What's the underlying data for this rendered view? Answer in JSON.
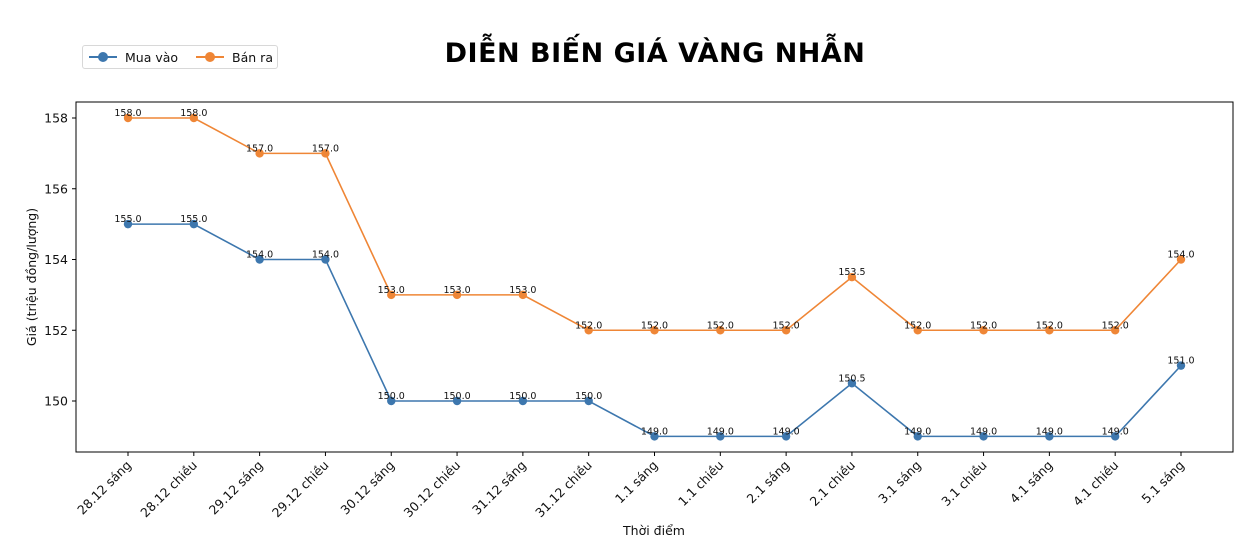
{
  "chart_data": {
    "type": "line",
    "title": "DIỄN BIẾN GIÁ VÀNG NHẪN",
    "xlabel": "Thời điểm",
    "ylabel": "Giá (triệu đồng/lượng)",
    "ylim": [
      148.6,
      158.45
    ],
    "yticks": [
      150,
      152,
      154,
      156,
      158
    ],
    "grid": false,
    "legend_position": "upper left (outside, above plot)",
    "categories": [
      "28.12 sáng",
      "28.12 chiều",
      "29.12 sáng",
      "29.12 chiều",
      "30.12 sáng",
      "30.12 chiều",
      "31.12 sáng",
      "31.12 chiều",
      "1.1 sáng",
      "1.1 chiều",
      "2.1 sáng",
      "2.1 chiều",
      "3.1 sáng",
      "3.1 chiều",
      "4.1 sáng",
      "4.1 chiều",
      "5.1 sáng"
    ],
    "series": [
      {
        "name": "Mua vào",
        "color": "#3d77ae",
        "values": [
          155.0,
          155.0,
          154.0,
          154.0,
          150.0,
          150.0,
          150.0,
          150.0,
          149.0,
          149.0,
          149.0,
          150.5,
          149.0,
          149.0,
          149.0,
          149.0,
          151.0
        ]
      },
      {
        "name": "Bán ra",
        "color": "#ef8636",
        "values": [
          158.0,
          158.0,
          157.0,
          157.0,
          153.0,
          153.0,
          153.0,
          152.0,
          152.0,
          152.0,
          152.0,
          153.5,
          152.0,
          152.0,
          152.0,
          152.0,
          154.0
        ]
      }
    ],
    "data_labels": true,
    "data_label_format": "0.0"
  },
  "legend": {
    "items": [
      {
        "label": "Mua vào",
        "color": "#3d77ae"
      },
      {
        "label": "Bán ra",
        "color": "#ef8636"
      }
    ]
  }
}
